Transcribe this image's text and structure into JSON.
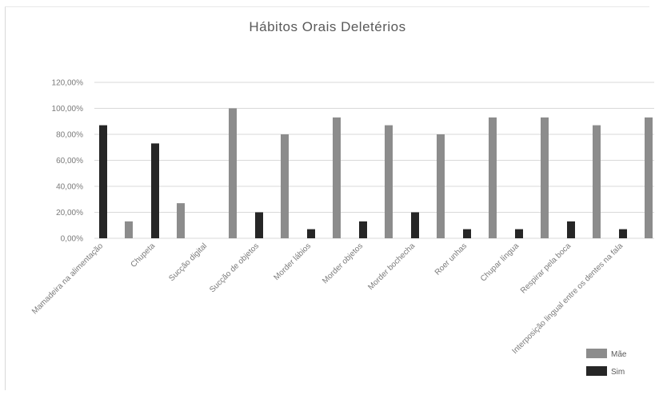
{
  "chart_data": {
    "type": "bar",
    "title": "Hábitos Orais Deletérios",
    "xlabel": "",
    "ylabel": "",
    "ylim": [
      0,
      1.2
    ],
    "y_ticks": [
      "0,00%",
      "20,00%",
      "40,00%",
      "60,00%",
      "80,00%",
      "100,00%",
      "120,00%"
    ],
    "grid": true,
    "legend_position": "bottom-right",
    "categories": [
      "Mamadeira na alimentação",
      "Chupeta",
      "Sucção digital",
      "Sucção de objetos",
      "Morder lábios",
      "Morder objetos",
      "Morder bochecha",
      "Roer unhas",
      "Chupar língua",
      "Respirar pela boca",
      "Interposição lingual entre os dentes na fala"
    ],
    "series": [
      {
        "name": "Mãe",
        "color": "#8c8c8c",
        "values": [
          0.13,
          0.27,
          1.0,
          0.8,
          0.93,
          0.87,
          0.8,
          0.93,
          0.93,
          0.87,
          0.93
        ]
      },
      {
        "name": "Sim",
        "color": "#262626",
        "values": [
          0.87,
          0.73,
          0.0,
          0.2,
          0.07,
          0.13,
          0.2,
          0.07,
          0.07,
          0.13,
          0.07
        ]
      }
    ]
  }
}
